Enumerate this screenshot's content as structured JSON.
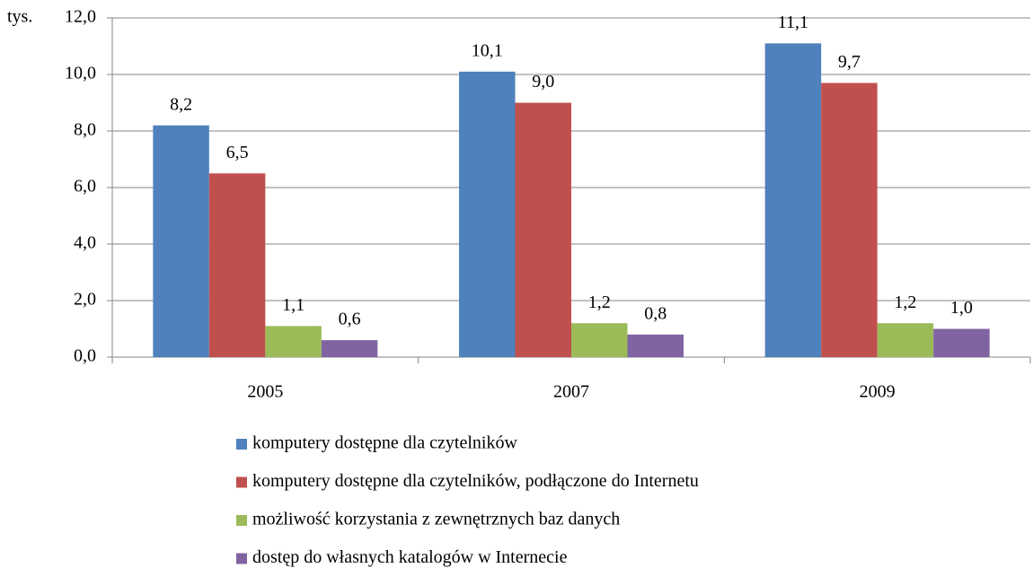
{
  "chart_data": {
    "type": "bar",
    "ylabel": "tys.",
    "categories": [
      "2005",
      "2007",
      "2009"
    ],
    "series": [
      {
        "name": "komputery dostępne dla czytelników",
        "color": "#4f81bd",
        "values": [
          8.2,
          10.1,
          11.1
        ],
        "value_labels": [
          "8,2",
          "10,1",
          "11,1"
        ]
      },
      {
        "name": "komputery dostępne dla czytelników, podłączone do Internetu",
        "color": "#c0504d",
        "values": [
          6.5,
          9.0,
          9.7
        ],
        "value_labels": [
          "6,5",
          "9,0",
          "9,7"
        ]
      },
      {
        "name": "możliwość korzystania z zewnętrznych baz danych",
        "color": "#9bbb59",
        "values": [
          1.1,
          1.2,
          1.2
        ],
        "value_labels": [
          "1,1",
          "1,2",
          "1,2"
        ]
      },
      {
        "name": "dostęp do własnych katalogów w Internecie",
        "color": "#8064a2",
        "values": [
          0.6,
          0.8,
          1.0
        ],
        "value_labels": [
          "0,6",
          "0,8",
          "1,0"
        ]
      }
    ],
    "ylim": [
      0,
      12
    ],
    "yticks": [
      {
        "value": 0,
        "label": "0,0"
      },
      {
        "value": 2,
        "label": "2,0"
      },
      {
        "value": 4,
        "label": "4,0"
      },
      {
        "value": 6,
        "label": "6,0"
      },
      {
        "value": 8,
        "label": "8,0"
      },
      {
        "value": 10,
        "label": "10,0"
      },
      {
        "value": 12,
        "label": "12,0"
      }
    ],
    "grid": true,
    "legend": "bottom"
  }
}
